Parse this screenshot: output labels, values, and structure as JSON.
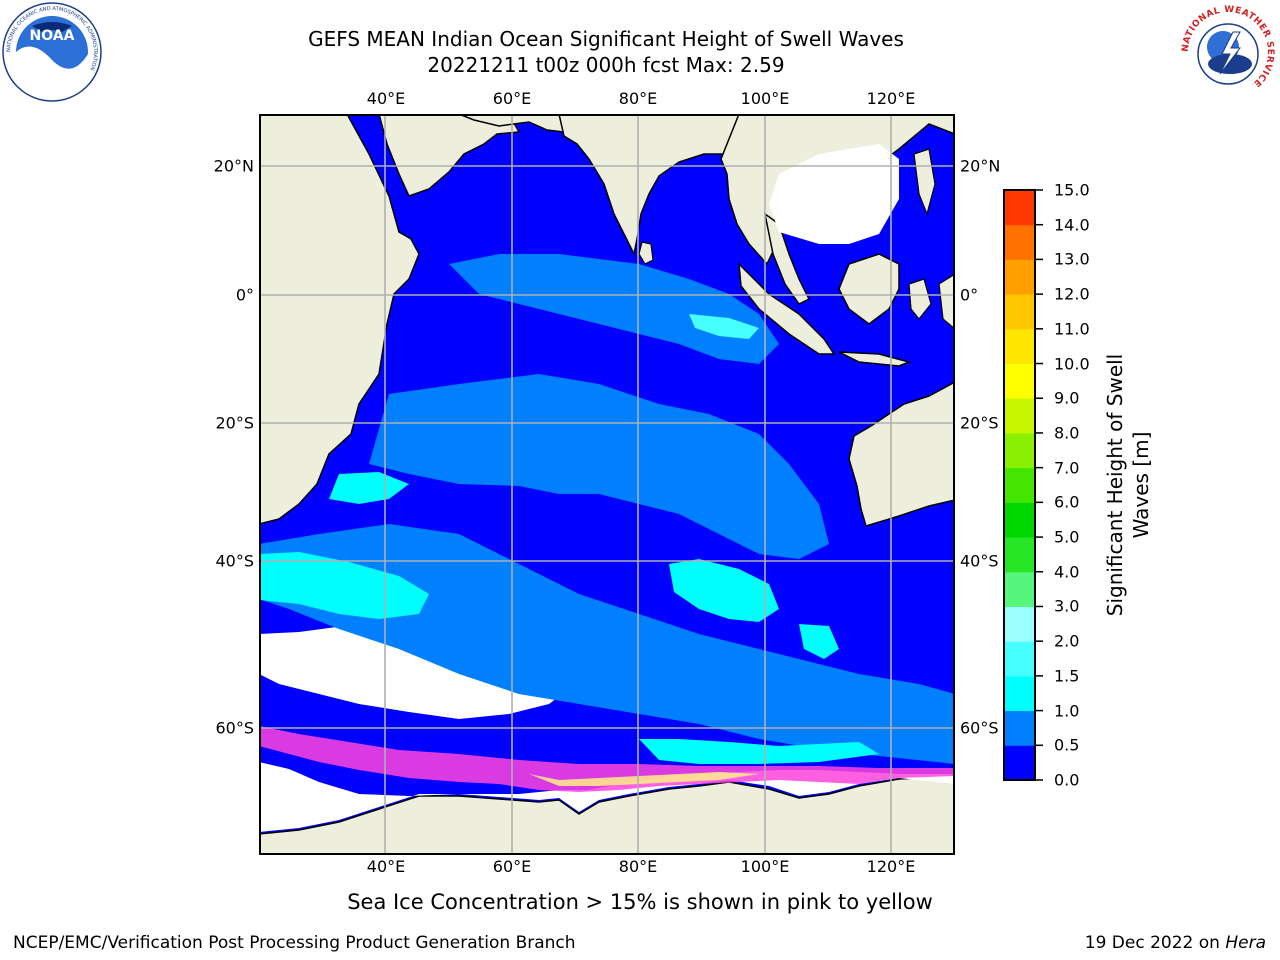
{
  "title": {
    "line1": "GEFS MEAN Indian Ocean Significant Height of Swell Waves",
    "line2": "20221211 t00z 000h fcst   Max: 2.59"
  },
  "map": {
    "lon_labels": [
      "40°E",
      "60°E",
      "80°E",
      "100°E",
      "120°E"
    ],
    "lat_labels": [
      "20°N",
      "0°",
      "20°S",
      "40°S",
      "60°S"
    ],
    "colors": {
      "land": "#eeeedd",
      "ocean_0": "#0000ff",
      "ocean_05": "#007fff",
      "ocean_10": "#00ffff",
      "ocean_15": "#47ffff",
      "grid": "#b0b0b0"
    }
  },
  "colorbar": {
    "label_line1": "Significant Height of Swell",
    "label_line2": "Waves [m]",
    "ticks": [
      "0.0",
      "0.5",
      "1.0",
      "1.5",
      "2.0",
      "3.0",
      "4.0",
      "5.0",
      "6.0",
      "7.0",
      "8.0",
      "9.0",
      "10.0",
      "11.0",
      "12.0",
      "13.0",
      "14.0",
      "15.0"
    ],
    "colors": [
      "#0000ff",
      "#007fff",
      "#00ffff",
      "#47ffff",
      "#9effff",
      "#56f57b",
      "#26e626",
      "#00d800",
      "#44e600",
      "#88f000",
      "#c9f700",
      "#ffff00",
      "#ffe500",
      "#ffc700",
      "#ff9f00",
      "#ff7200",
      "#ff3800",
      "#ff0000"
    ]
  },
  "caption": "Sea Ice Concentration > 15% is shown in pink to yellow",
  "footer": {
    "left": "NCEP/EMC/Verification Post Processing Product Generation Branch",
    "right_text": "19 Dec 2022 on ",
    "right_host": "Hera"
  },
  "logos": {
    "noaa": {
      "text": "NOAA",
      "ring_text": "NATIONAL OCEANIC AND ATMOSPHERIC ADMINISTRATION"
    },
    "nws": {
      "ring_text": "NATIONAL WEATHER SERVICE"
    }
  }
}
